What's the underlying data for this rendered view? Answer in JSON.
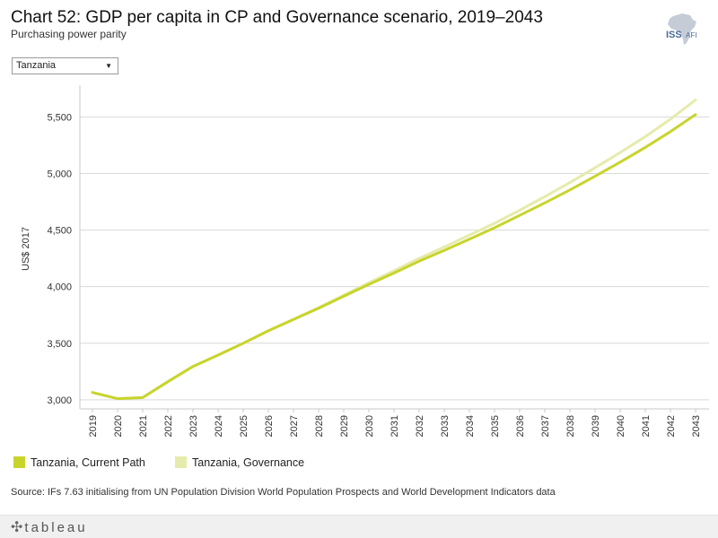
{
  "header": {
    "title": "Chart 52: GDP per capita in CP and Governance scenario, 2019–2043",
    "subtitle": "Purchasing power parity",
    "logo_text": "ISS",
    "logo_suffix": "AFI"
  },
  "filter": {
    "selected": "Tanzania"
  },
  "colors": {
    "current_path": "#c8d42c",
    "governance": "#e6ebab",
    "grid": "#d9d9d9",
    "axis": "#c8c8c8"
  },
  "chart_data": {
    "type": "line",
    "title": "Chart 52: GDP per capita in CP and Governance scenario, 2019–2043",
    "xlabel": "",
    "ylabel": "US$ 2017",
    "ylim": [
      2920,
      5780
    ],
    "yticks": [
      3000,
      3500,
      4000,
      4500,
      5000,
      5500
    ],
    "ytick_labels": [
      "3,000",
      "3,500",
      "4,000",
      "4,500",
      "5,000",
      "5,500"
    ],
    "x": [
      "2019",
      "2020",
      "2021",
      "2022",
      "2023",
      "2024",
      "2025",
      "2026",
      "2027",
      "2028",
      "2029",
      "2030",
      "2031",
      "2032",
      "2033",
      "2034",
      "2035",
      "2036",
      "2037",
      "2038",
      "2039",
      "2040",
      "2041",
      "2042",
      "2043"
    ],
    "grid": true,
    "series": [
      {
        "name": "Tanzania, Current Path",
        "values": [
          3065,
          3010,
          3020,
          3160,
          3295,
          3395,
          3500,
          3610,
          3710,
          3810,
          3915,
          4020,
          4120,
          4225,
          4320,
          4420,
          4520,
          4630,
          4740,
          4855,
          4975,
          5100,
          5230,
          5370,
          5520
        ]
      },
      {
        "name": "Tanzania, Governance",
        "values": [
          3065,
          3010,
          3020,
          3160,
          3295,
          3395,
          3500,
          3610,
          3710,
          3815,
          3925,
          4035,
          4140,
          4250,
          4350,
          4455,
          4560,
          4675,
          4795,
          4920,
          5050,
          5185,
          5325,
          5480,
          5650
        ]
      }
    ]
  },
  "legend": {
    "items": [
      "Tanzania, Current Path",
      "Tanzania, Governance"
    ]
  },
  "source": "Source: IFs 7.63 initialising from UN Population Division World Population Prospects and World Development Indicators data",
  "footer": {
    "brand": "tableau"
  }
}
